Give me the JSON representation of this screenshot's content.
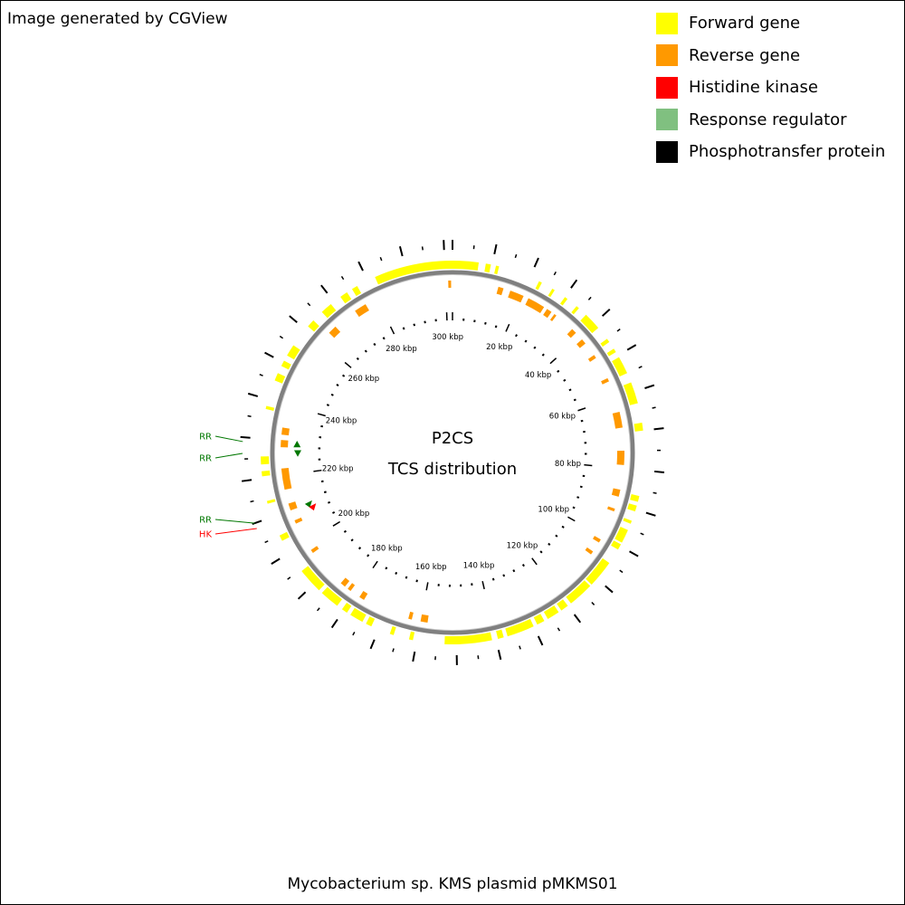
{
  "credit": "Image generated by CGView",
  "title_lines": [
    "P2CS",
    "TCS distribution"
  ],
  "footer": "Mycobacterium sp. KMS plasmid pMKMS01",
  "legend": [
    {
      "label": "Forward gene",
      "color": "#ffff00"
    },
    {
      "label": "Reverse gene",
      "color": "#ff9900"
    },
    {
      "label": "Histidine kinase",
      "color": "#ff0000"
    },
    {
      "label": "Response regulator",
      "color": "#80c080"
    },
    {
      "label": "Phosphotransfer protein",
      "color": "#000000"
    }
  ],
  "colors": {
    "forward": "#ffff00",
    "reverse": "#ff9900",
    "hk": "#ff0000",
    "rr_label": "#007700",
    "rr_marker": "#007700",
    "backbone": "#808080"
  },
  "map": {
    "length_kbp": 302,
    "tick_labels": [
      "20 kbp",
      "40 kbp",
      "60 kbp",
      "80 kbp",
      "100 kbp",
      "120 kbp",
      "140 kbp",
      "160 kbp",
      "180 kbp",
      "200 kbp",
      "220 kbp",
      "240 kbp",
      "260 kbp",
      "280 kbp",
      "300 kbp"
    ],
    "forward_genes_kbp": [
      [
        282.0,
        6.6
      ],
      [
        8.4,
        9.7
      ],
      [
        11.0,
        11.8
      ],
      [
        22.5,
        23.3
      ],
      [
        26.3,
        27.0
      ],
      [
        30.1,
        30.9
      ],
      [
        33.8,
        34.6
      ],
      [
        37.0,
        41.5
      ],
      [
        45.0,
        46.0
      ],
      [
        48.0,
        49.0
      ],
      [
        50.5,
        55.0
      ],
      [
        57.5,
        63.0
      ],
      [
        68.0,
        70.0
      ],
      [
        86.5,
        88.0
      ],
      [
        89.0,
        90.5
      ],
      [
        93.0,
        93.8
      ],
      [
        95.5,
        99.0
      ],
      [
        99.5,
        101.0
      ],
      [
        105.0,
        112.0
      ],
      [
        112.5,
        119.0
      ],
      [
        120.0,
        122.0
      ],
      [
        122.8,
        126.0
      ],
      [
        127.0,
        129.0
      ],
      [
        130.0,
        137.0
      ],
      [
        138.0,
        139.5
      ],
      [
        141.0,
        153.0
      ],
      [
        161.0,
        162.0
      ],
      [
        166.0,
        167.0
      ],
      [
        172.0,
        173.5
      ],
      [
        174.5,
        178.0
      ],
      [
        179.0,
        180.5
      ],
      [
        182.0,
        187.0
      ],
      [
        188.0,
        194.5
      ],
      [
        203.5,
        205.0
      ],
      [
        213.5,
        214.2
      ],
      [
        220.5,
        221.8
      ],
      [
        223.5,
        225.5
      ],
      [
        237.5,
        238.3
      ],
      [
        245.0,
        247.0
      ],
      [
        249.0,
        250.5
      ],
      [
        252.0,
        255.0
      ],
      [
        261.0,
        263.0
      ],
      [
        266.0,
        269.0
      ],
      [
        272.0,
        274.0
      ],
      [
        275.5,
        277.0
      ]
    ],
    "reverse_genes_kbp": [
      [
        300.8,
        301.6
      ],
      [
        13.0,
        14.5
      ],
      [
        16.5,
        20.5
      ],
      [
        22.0,
        27.0
      ],
      [
        28.0,
        29.5
      ],
      [
        30.5,
        31.2
      ],
      [
        37.0,
        38.5
      ],
      [
        41.0,
        42.5
      ],
      [
        46.5,
        47.5
      ],
      [
        54.0,
        55.0
      ],
      [
        64.0,
        68.5
      ],
      [
        75.0,
        79.0
      ],
      [
        86.0,
        88.0
      ],
      [
        91.5,
        92.3
      ],
      [
        101.0,
        102.0
      ],
      [
        105.0,
        106.0
      ],
      [
        158.0,
        160.0
      ],
      [
        162.5,
        163.5
      ],
      [
        177.0,
        178.5
      ],
      [
        181.5,
        182.5
      ],
      [
        183.5,
        185.0
      ],
      [
        196.5,
        197.5
      ],
      [
        206.0,
        207.0
      ],
      [
        210.0,
        212.0
      ],
      [
        216.0,
        222.0
      ],
      [
        228.0,
        230.0
      ],
      [
        231.5,
        233.5
      ],
      [
        263.5,
        266.0
      ],
      [
        273.0,
        276.5
      ]
    ],
    "tcs": [
      {
        "type": "RR",
        "label": "RR",
        "pos_kbp": 229.0
      },
      {
        "type": "RR",
        "label": "RR",
        "pos_kbp": 226.3
      },
      {
        "type": "RR",
        "label": "RR",
        "pos_kbp": 210.0
      },
      {
        "type": "HK",
        "label": "HK",
        "pos_kbp": 208.7
      }
    ]
  }
}
